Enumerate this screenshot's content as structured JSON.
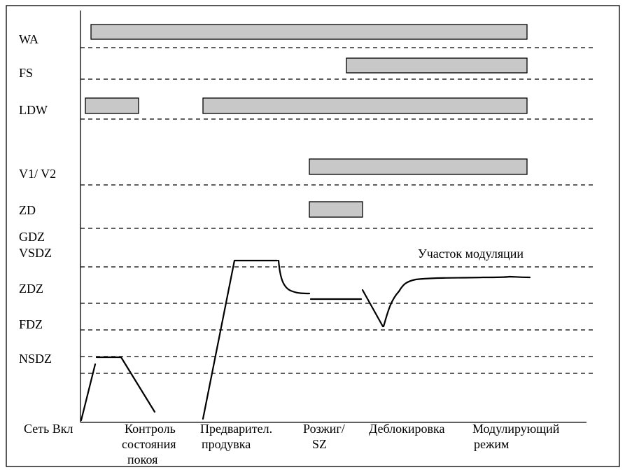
{
  "rows": [
    {
      "label": "WA"
    },
    {
      "label": "FS"
    },
    {
      "label": "LDW"
    },
    {
      "label": "V1/ V2"
    },
    {
      "label": "ZD"
    },
    {
      "label": "GDZ"
    },
    {
      "label": "VSDZ"
    },
    {
      "label": "ZDZ"
    },
    {
      "label": "FDZ"
    },
    {
      "label": "NSDZ"
    }
  ],
  "annotation": "Участок модуляции",
  "phases": [
    {
      "lines": [
        "Сеть Вкл"
      ]
    },
    {
      "lines": [
        "Контроль",
        "состояния",
        "покоя"
      ]
    },
    {
      "lines": [
        "Предварител.",
        "продувка"
      ]
    },
    {
      "lines": [
        "Розжиг/",
        "SZ"
      ]
    },
    {
      "lines": [
        "Деблокировка"
      ]
    },
    {
      "lines": [
        "Модулирующий",
        "режим"
      ]
    }
  ],
  "colors": {
    "bar_fill": "#c8c8c8",
    "line": "#000000",
    "background": "#ffffff"
  }
}
